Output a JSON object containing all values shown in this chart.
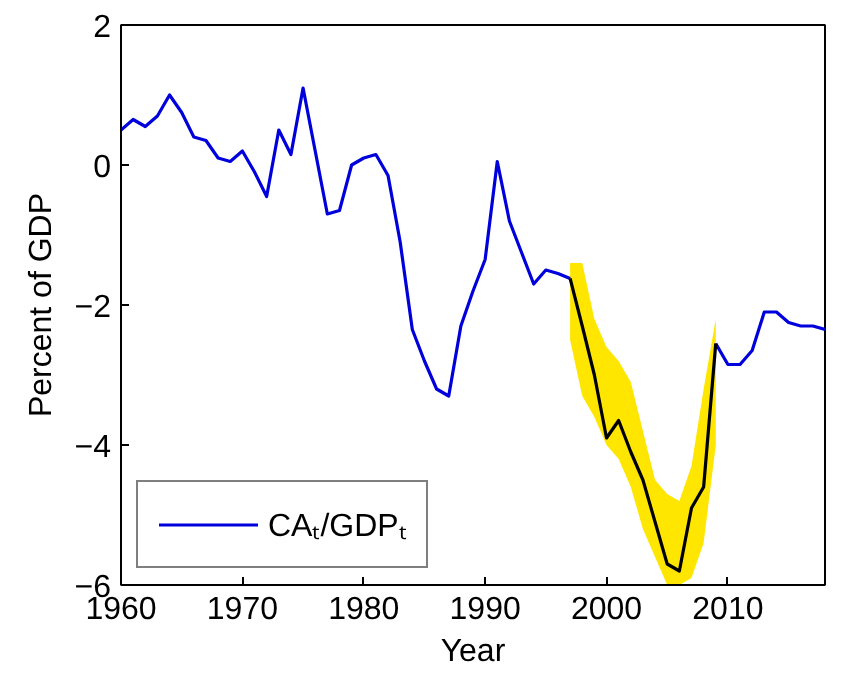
{
  "chart_data": {
    "type": "line",
    "xlabel": "Year",
    "ylabel": "Percent of GDP",
    "xlim": [
      1960,
      2018
    ],
    "ylim": [
      -6,
      2
    ],
    "xticks": [
      1960,
      1970,
      1980,
      1990,
      2000,
      2010
    ],
    "yticks": [
      -6,
      -4,
      -2,
      0,
      2
    ],
    "grid": false,
    "legend": "bottom left",
    "marker": "none",
    "line_style": "solid",
    "series": [
      {
        "name": "CAₜ/GDPₜ",
        "color": "#0000dd",
        "x": [
          1960,
          1961,
          1962,
          1963,
          1964,
          1965,
          1966,
          1967,
          1968,
          1969,
          1970,
          1971,
          1972,
          1973,
          1974,
          1975,
          1976,
          1977,
          1978,
          1979,
          1980,
          1981,
          1982,
          1983,
          1984,
          1985,
          1986,
          1987,
          1988,
          1989,
          1990,
          1991,
          1992,
          1993,
          1994,
          1995,
          1996,
          1997,
          1998,
          1999,
          2000,
          2001,
          2002,
          2003,
          2004,
          2005,
          2006,
          2007,
          2008,
          2009,
          2010,
          2011,
          2012,
          2013,
          2014,
          2015,
          2016,
          2017,
          2018
        ],
        "values": [
          0.5,
          0.65,
          0.55,
          0.7,
          1.0,
          0.75,
          0.4,
          0.35,
          0.1,
          0.05,
          0.2,
          -0.1,
          -0.45,
          0.5,
          0.15,
          1.1,
          0.2,
          -0.7,
          -0.65,
          0.0,
          0.1,
          0.15,
          -0.15,
          -1.1,
          -2.35,
          -2.8,
          -3.2,
          -3.3,
          -2.3,
          -1.8,
          -1.35,
          0.05,
          -0.8,
          -1.25,
          -1.7,
          -1.5,
          -1.55,
          -1.62,
          null,
          null,
          null,
          null,
          null,
          null,
          null,
          null,
          null,
          null,
          null,
          -2.55,
          -2.85,
          -2.85,
          -2.65,
          -2.1,
          -2.1,
          -2.25,
          -2.3,
          -2.3,
          -2.35
        ]
      },
      {
        "color": "#000000",
        "x": [
          1997,
          1998,
          1999,
          2000,
          2001,
          2002,
          2003,
          2004,
          2005,
          2006,
          2007,
          2008,
          2009
        ],
        "values": [
          -1.62,
          -2.3,
          -3.0,
          -3.9,
          -3.65,
          -4.1,
          -4.5,
          -5.1,
          -5.7,
          -5.8,
          -4.9,
          -4.6,
          -2.55
        ],
        "lower": [
          -2.5,
          -3.3,
          -3.6,
          -4.0,
          -4.2,
          -4.6,
          -5.2,
          -5.6,
          -6.0,
          -6.0,
          -5.9,
          -5.4,
          -4.0
        ],
        "upper": [
          -1.4,
          -1.4,
          -2.2,
          -2.6,
          -2.8,
          -3.1,
          -3.8,
          -4.5,
          -4.7,
          -4.8,
          -4.3,
          -3.2,
          -2.2
        ]
      }
    ]
  }
}
